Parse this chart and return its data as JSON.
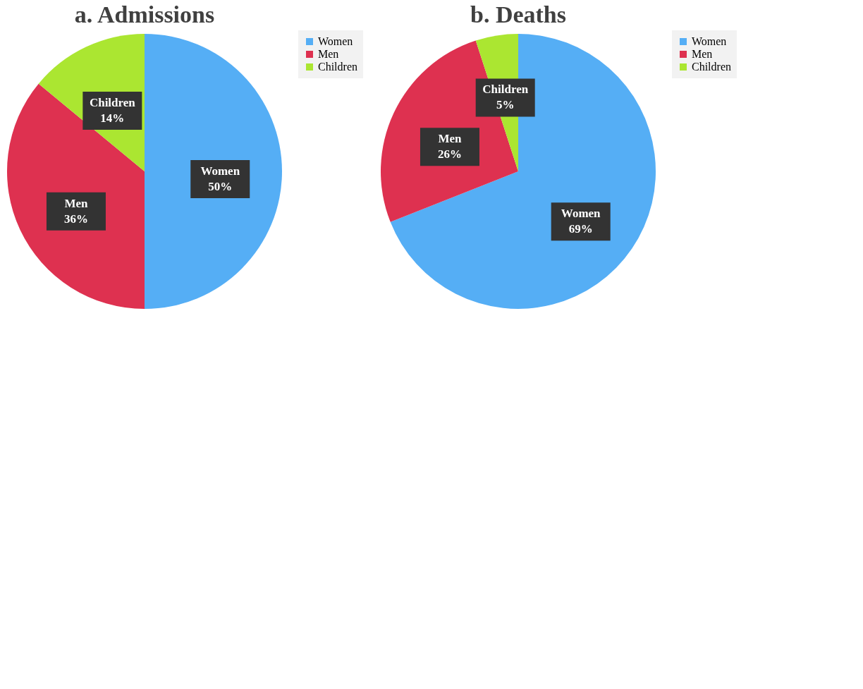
{
  "chart_data": [
    {
      "type": "pie",
      "title": "a. Admissions",
      "categories": [
        "Women",
        "Men",
        "Children"
      ],
      "values": [
        50,
        36,
        14
      ],
      "value_labels": [
        "50%",
        "36%",
        "14%"
      ],
      "colors": [
        "#55aef5",
        "#de3150",
        "#abe631"
      ],
      "legend": "right"
    },
    {
      "type": "pie",
      "title": "b. Deaths",
      "categories": [
        "Women",
        "Men",
        "Children"
      ],
      "values": [
        69,
        26,
        5
      ],
      "value_labels": [
        "69%",
        "26%",
        "5%"
      ],
      "colors": [
        "#55aef5",
        "#de3150",
        "#abe631"
      ],
      "legend": "right"
    }
  ]
}
